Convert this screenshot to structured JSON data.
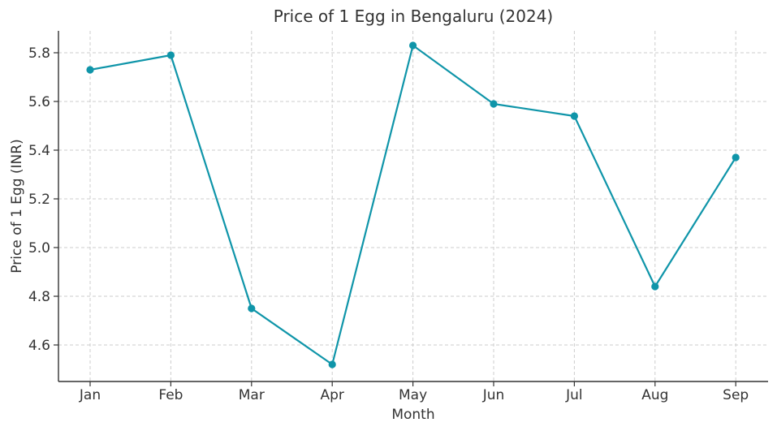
{
  "chart_data": {
    "type": "line",
    "title": "Price of 1 Egg in Bengaluru (2024)",
    "xlabel": "Month",
    "ylabel": "Price of 1 Egg (INR)",
    "categories": [
      "Jan",
      "Feb",
      "Mar",
      "Apr",
      "May",
      "Jun",
      "Jul",
      "Aug",
      "Sep"
    ],
    "series": [
      {
        "name": "Price of 1 Egg",
        "values": [
          5.73,
          5.79,
          4.75,
          4.52,
          5.83,
          5.59,
          5.54,
          4.84,
          5.37
        ],
        "color": "#0f95a9"
      }
    ],
    "ylim": [
      4.45,
      5.89
    ],
    "yticks": [
      4.6,
      4.8,
      5.0,
      5.2,
      5.4,
      5.6,
      5.8
    ],
    "ytick_labels": [
      "4.6",
      "4.8",
      "5.0",
      "5.2",
      "5.4",
      "5.6",
      "5.8"
    ],
    "grid": true
  }
}
